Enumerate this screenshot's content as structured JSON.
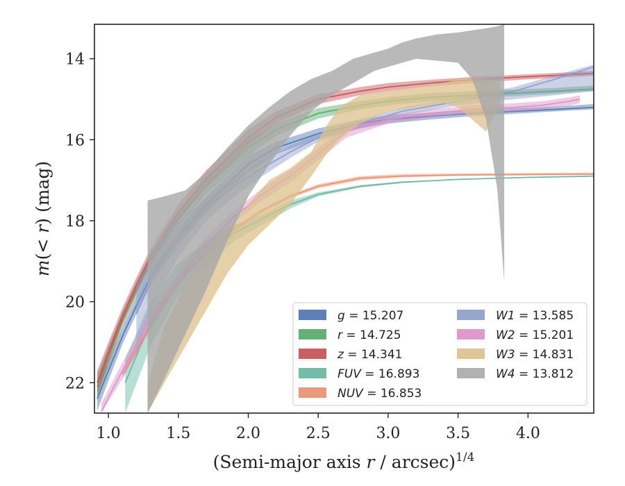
{
  "chart_data": {
    "type": "line",
    "xlabel": "(Semi-major axis r / arcsec)^1/4",
    "xlabel_main": "(Semi-major axis ",
    "xlabel_var": "r",
    "xlabel_rest": " / arcsec)",
    "xlabel_sup": "1/4",
    "ylabel": "m(< r) (mag)",
    "ylabel_m": "m",
    "ylabel_mid": "(< ",
    "ylabel_r": "r",
    "ylabel_end": ") (mag)",
    "xlim": [
      0.9,
      4.47
    ],
    "ylim": [
      22.75,
      13.15
    ],
    "y_inverted": true,
    "grid": false,
    "legend_position": "lower-right",
    "x_ticks": [
      {
        "value": 1.0,
        "label": "1.0"
      },
      {
        "value": 1.5,
        "label": "1.5"
      },
      {
        "value": 2.0,
        "label": "2.0"
      },
      {
        "value": 2.5,
        "label": "2.5"
      },
      {
        "value": 3.0,
        "label": "3.0"
      },
      {
        "value": 3.5,
        "label": "3.5"
      },
      {
        "value": 4.0,
        "label": "4.0"
      }
    ],
    "y_ticks": [
      {
        "value": 14,
        "label": "14"
      },
      {
        "value": 16,
        "label": "16"
      },
      {
        "value": 18,
        "label": "18"
      },
      {
        "value": 20,
        "label": "20"
      },
      {
        "value": 22,
        "label": "22"
      }
    ],
    "series": [
      {
        "name": "g",
        "legend_var": "g",
        "legend_value": "15.207",
        "color": "#4c72b0",
        "kind": "curve",
        "x": [
          0.92,
          1.0,
          1.1,
          1.2,
          1.3,
          1.5,
          1.7,
          2.0,
          2.2,
          2.5,
          2.8,
          3.0,
          3.3,
          3.6,
          3.9,
          4.2,
          4.47
        ],
        "y": [
          22.4,
          21.7,
          20.85,
          20.1,
          19.4,
          18.4,
          17.6,
          16.6,
          16.2,
          15.85,
          15.6,
          15.5,
          15.42,
          15.35,
          15.3,
          15.25,
          15.2
        ],
        "y_lower": [
          22.7,
          21.95,
          21.05,
          20.3,
          19.6,
          18.6,
          17.8,
          16.8,
          16.35,
          15.98,
          15.72,
          15.6,
          15.5,
          15.42,
          15.36,
          15.3,
          15.25
        ],
        "y_upper": [
          22.1,
          21.45,
          20.65,
          19.9,
          19.2,
          18.2,
          17.4,
          16.4,
          16.05,
          15.72,
          15.5,
          15.4,
          15.33,
          15.27,
          15.22,
          15.18,
          15.12
        ]
      },
      {
        "name": "r",
        "legend_var": "r",
        "legend_value": "14.725",
        "color": "#55a868",
        "kind": "curve",
        "x": [
          0.92,
          1.0,
          1.1,
          1.2,
          1.3,
          1.5,
          1.7,
          2.0,
          2.2,
          2.5,
          2.8,
          3.0,
          3.3,
          3.6,
          3.9,
          4.2,
          4.47
        ],
        "y": [
          22.1,
          21.35,
          20.45,
          19.7,
          19.0,
          17.95,
          17.15,
          16.2,
          15.75,
          15.35,
          15.15,
          15.05,
          14.95,
          14.9,
          14.85,
          14.8,
          14.75
        ],
        "y_lower": [
          22.4,
          21.6,
          20.65,
          19.9,
          19.2,
          18.15,
          17.35,
          16.4,
          15.9,
          15.48,
          15.25,
          15.15,
          15.05,
          14.98,
          14.92,
          14.86,
          14.8
        ],
        "y_upper": [
          21.8,
          21.1,
          20.25,
          19.5,
          18.8,
          17.75,
          16.95,
          16.0,
          15.6,
          15.22,
          15.05,
          14.95,
          14.85,
          14.8,
          14.76,
          14.72,
          14.66
        ]
      },
      {
        "name": "z",
        "legend_var": "z",
        "legend_value": "14.341",
        "color": "#c44e52",
        "kind": "curve",
        "x": [
          0.92,
          1.0,
          1.1,
          1.2,
          1.3,
          1.5,
          1.7,
          2.0,
          2.2,
          2.5,
          2.8,
          3.0,
          3.3,
          3.6,
          3.9,
          4.2,
          4.47
        ],
        "y": [
          22.0,
          21.25,
          20.35,
          19.6,
          18.9,
          17.8,
          16.95,
          15.95,
          15.45,
          15.0,
          14.8,
          14.7,
          14.6,
          14.52,
          14.46,
          14.41,
          14.36
        ],
        "y_lower": [
          22.3,
          21.5,
          20.55,
          19.8,
          19.1,
          18.0,
          17.15,
          16.15,
          15.6,
          15.12,
          14.9,
          14.8,
          14.68,
          14.6,
          14.53,
          14.47,
          14.42
        ],
        "y_upper": [
          21.7,
          21.0,
          20.15,
          19.4,
          18.7,
          17.6,
          16.75,
          15.75,
          15.3,
          14.88,
          14.7,
          14.6,
          14.52,
          14.45,
          14.4,
          14.35,
          14.3
        ]
      },
      {
        "name": "FUV",
        "legend_var": "FUV",
        "legend_value": "16.893",
        "color": "#64b5a0",
        "kind": "curve",
        "x": [
          1.12,
          1.3,
          1.5,
          1.7,
          1.9,
          2.1,
          2.3,
          2.5,
          2.8,
          3.1,
          3.5,
          4.0,
          4.47
        ],
        "y": [
          22.0,
          20.5,
          19.45,
          18.8,
          18.3,
          17.95,
          17.6,
          17.35,
          17.15,
          17.05,
          16.98,
          16.93,
          16.9
        ],
        "y_lower": [
          22.75,
          21.1,
          19.85,
          19.1,
          18.5,
          18.1,
          17.7,
          17.4,
          17.18,
          17.07,
          16.99,
          16.94,
          16.91
        ],
        "y_upper": [
          21.4,
          20.0,
          19.05,
          18.5,
          18.1,
          17.85,
          17.5,
          17.3,
          17.12,
          17.03,
          16.97,
          16.92,
          16.89
        ]
      },
      {
        "name": "NUV",
        "legend_var": "NUV",
        "legend_value": "16.853",
        "color": "#e88e6c",
        "kind": "curve",
        "x": [
          1.1,
          1.3,
          1.5,
          1.7,
          1.9,
          2.1,
          2.3,
          2.5,
          2.8,
          3.1,
          3.5,
          4.0,
          4.47
        ],
        "y": [
          21.8,
          20.6,
          19.55,
          18.75,
          18.2,
          17.75,
          17.4,
          17.15,
          16.95,
          16.9,
          16.87,
          16.86,
          16.85
        ],
        "y_lower": [
          21.9,
          20.7,
          19.6,
          18.8,
          18.25,
          17.8,
          17.45,
          17.2,
          17.0,
          16.93,
          16.89,
          16.88,
          16.87
        ],
        "y_upper": [
          21.7,
          20.5,
          19.5,
          18.7,
          18.15,
          17.7,
          17.35,
          17.1,
          16.9,
          16.85,
          16.83,
          16.82,
          16.81
        ]
      },
      {
        "name": "W1",
        "legend_var": "W1",
        "legend_value": "13.585",
        "color": "#8c9cc8",
        "kind": "curve",
        "x": [
          1.2,
          1.35,
          1.5,
          1.7,
          1.9,
          2.1,
          2.3,
          2.5,
          2.8,
          3.1,
          3.5,
          3.9,
          4.2,
          4.47
        ],
        "y": [
          20.3,
          19.1,
          18.4,
          17.7,
          17.15,
          16.7,
          16.3,
          15.95,
          15.6,
          15.3,
          15.05,
          14.8,
          14.5,
          14.2
        ],
        "y_lower": [
          21.3,
          19.8,
          18.9,
          18.0,
          17.4,
          16.9,
          16.45,
          16.05,
          15.7,
          15.4,
          15.15,
          15.0,
          14.9,
          14.8
        ],
        "y_upper": [
          19.6,
          18.6,
          18.0,
          17.45,
          16.95,
          16.5,
          16.15,
          15.85,
          15.5,
          15.2,
          14.95,
          14.7,
          14.4,
          14.15
        ]
      },
      {
        "name": "W2",
        "legend_var": "W2",
        "legend_value": "15.201",
        "color": "#dc8ec8",
        "kind": "curve",
        "x": [
          0.95,
          1.1,
          1.3,
          1.5,
          1.7,
          1.9,
          2.1,
          2.3,
          2.5,
          2.7,
          3.0,
          3.3,
          3.6,
          3.9,
          4.1,
          4.3,
          4.37
        ],
        "y": [
          22.7,
          21.7,
          20.4,
          19.45,
          18.6,
          17.9,
          17.35,
          16.9,
          16.35,
          15.8,
          15.5,
          15.35,
          15.25,
          15.2,
          15.15,
          15.05,
          15.0
        ],
        "y_lower": [
          22.75,
          21.9,
          20.6,
          19.6,
          18.8,
          18.05,
          17.5,
          17.05,
          16.5,
          15.95,
          15.6,
          15.45,
          15.35,
          15.3,
          15.25,
          15.15,
          15.1
        ],
        "y_upper": [
          22.5,
          21.5,
          20.2,
          19.3,
          18.4,
          17.75,
          17.2,
          16.75,
          16.2,
          15.65,
          15.4,
          15.25,
          15.15,
          15.1,
          15.05,
          14.95,
          14.9
        ]
      },
      {
        "name": "W3",
        "legend_var": "W3",
        "legend_value": "14.831",
        "color": "#dcc08c",
        "kind": "band",
        "x": [
          1.28,
          1.4,
          1.55,
          1.7,
          1.85,
          2.0,
          2.15,
          2.3,
          2.45,
          2.55,
          2.65,
          2.8,
          3.0,
          3.2,
          3.4,
          3.5,
          3.6,
          3.7,
          3.8
        ],
        "y_lower": [
          22.75,
          22.0,
          21.1,
          20.2,
          19.3,
          18.6,
          18.1,
          17.6,
          16.9,
          16.4,
          16.0,
          15.6,
          15.3,
          15.2,
          15.1,
          15.2,
          15.5,
          15.8,
          15.1
        ],
        "y_upper": [
          22.0,
          20.6,
          19.6,
          18.7,
          18.2,
          17.6,
          17.0,
          16.7,
          16.3,
          15.7,
          15.2,
          14.9,
          14.8,
          14.7,
          14.6,
          14.5,
          14.5,
          14.5,
          14.6
        ]
      },
      {
        "name": "W4",
        "legend_var": "W4",
        "legend_value": "13.812",
        "color": "#a8a8a8",
        "kind": "band",
        "x": [
          1.28,
          1.4,
          1.55,
          1.7,
          1.85,
          2.0,
          2.15,
          2.3,
          2.45,
          2.6,
          2.75,
          2.9,
          3.0,
          3.1,
          3.2,
          3.35,
          3.5,
          3.6,
          3.7,
          3.78,
          3.83
        ],
        "y_lower": [
          22.75,
          21.9,
          20.8,
          19.7,
          18.5,
          17.4,
          16.6,
          15.9,
          15.3,
          14.9,
          14.6,
          14.3,
          14.2,
          14.1,
          14.0,
          14.05,
          14.1,
          14.5,
          15.5,
          17.2,
          19.5
        ],
        "y_upper": [
          17.5,
          17.4,
          17.25,
          16.8,
          16.2,
          15.65,
          15.2,
          14.8,
          14.5,
          14.3,
          14.0,
          13.85,
          13.75,
          13.6,
          13.5,
          13.4,
          13.35,
          13.3,
          13.25,
          13.2,
          13.15
        ]
      }
    ]
  }
}
